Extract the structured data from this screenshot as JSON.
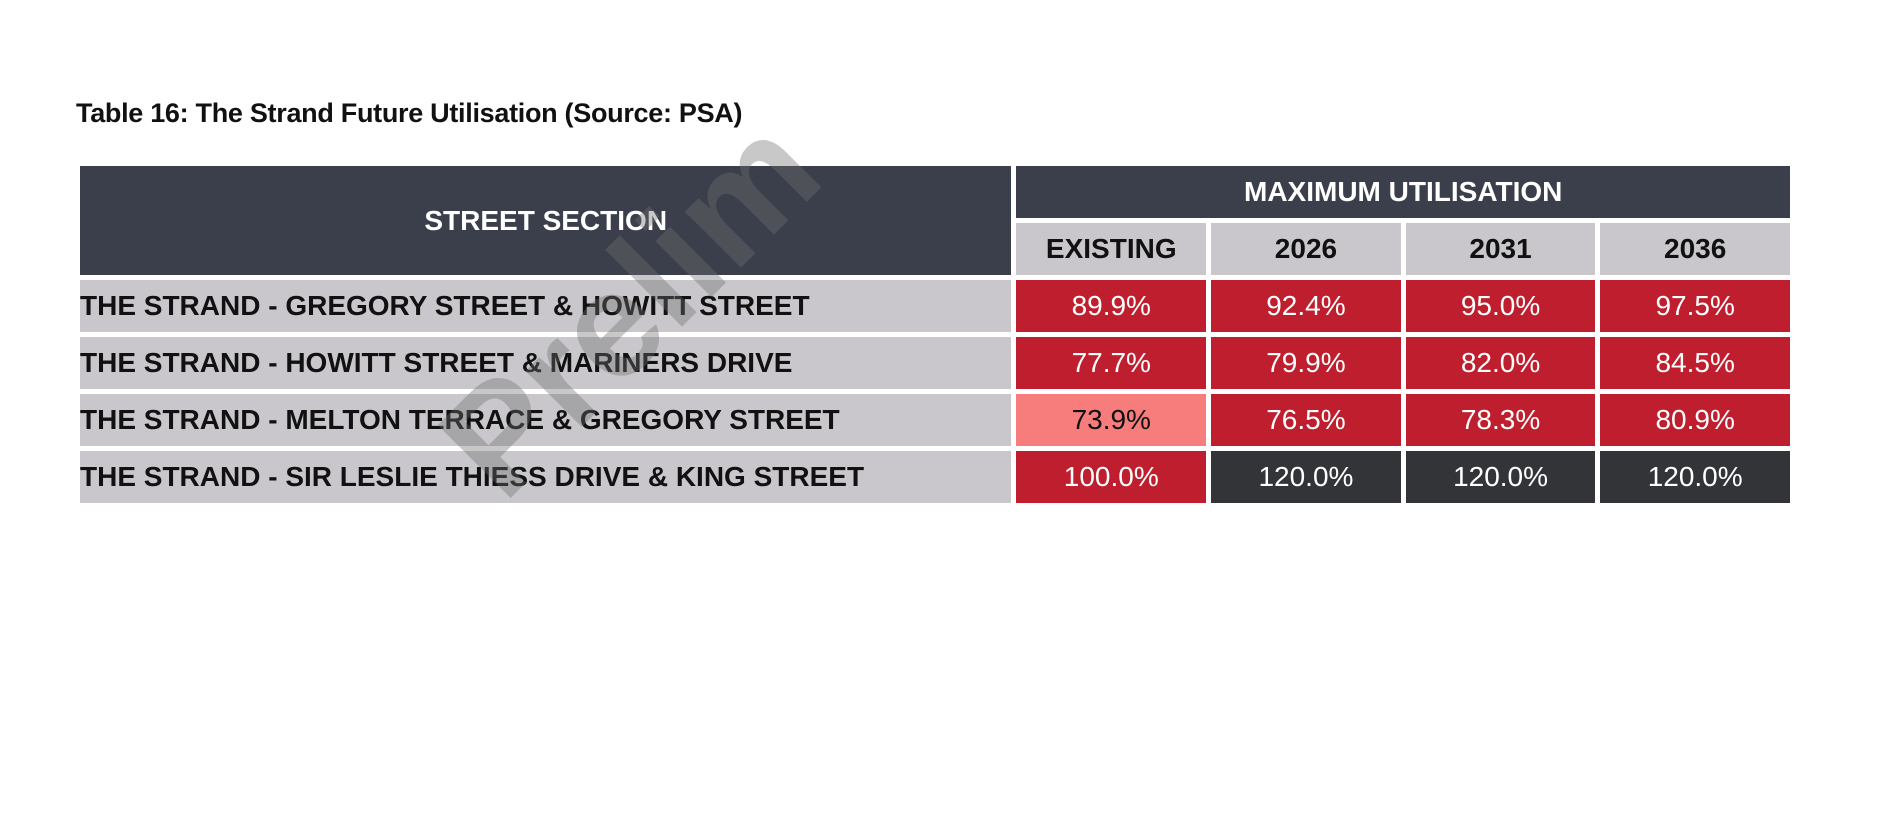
{
  "caption": "Table 16: The Strand Future Utilisation (Source: PSA)",
  "watermark": "Prelim",
  "table": {
    "street_header": "STREET SECTION",
    "group_header": "MAXIMUM UTILISATION",
    "columns": [
      "EXISTING",
      "2026",
      "2031",
      "2036"
    ],
    "rows": [
      {
        "section": "THE STRAND - GREGORY STREET & HOWITT STREET",
        "values": [
          "89.9%",
          "92.4%",
          "95.0%",
          "97.5%"
        ],
        "levels": [
          "red",
          "red",
          "red",
          "red"
        ]
      },
      {
        "section": "THE STRAND - HOWITT STREET & MARINERS DRIVE",
        "values": [
          "77.7%",
          "79.9%",
          "82.0%",
          "84.5%"
        ],
        "levels": [
          "red",
          "red",
          "red",
          "red"
        ]
      },
      {
        "section": "THE STRAND - MELTON TERRACE & GREGORY STREET",
        "values": [
          "73.9%",
          "76.5%",
          "78.3%",
          "80.9%"
        ],
        "levels": [
          "pink",
          "red",
          "red",
          "red"
        ]
      },
      {
        "section": "THE STRAND - SIR LESLIE THIESS DRIVE & KING STREET",
        "values": [
          "100.0%",
          "120.0%",
          "120.0%",
          "120.0%"
        ],
        "levels": [
          "red",
          "dark",
          "dark",
          "dark"
        ]
      }
    ]
  },
  "colors": {
    "header_dark": "#3b3f4b",
    "header_light": "#c9c7cc",
    "red": "#be1e2d",
    "pink": "#f77c7c",
    "dark": "#333438"
  }
}
